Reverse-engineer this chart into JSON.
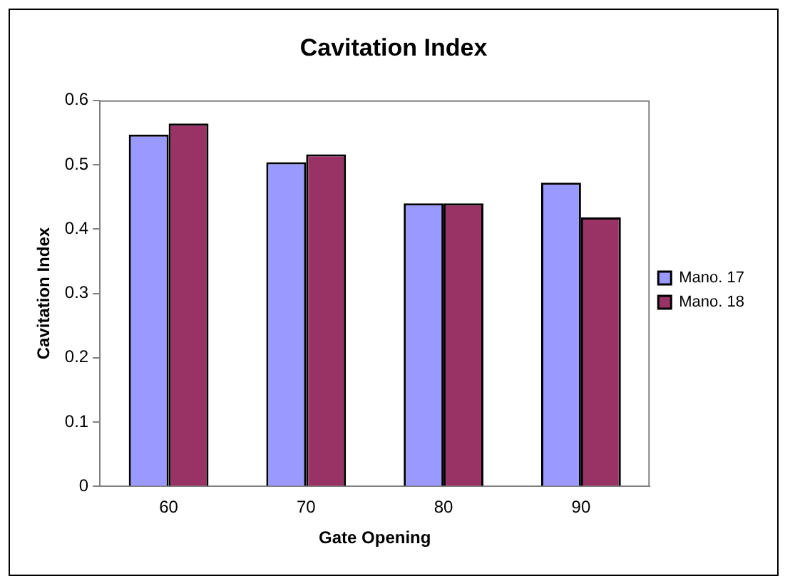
{
  "chart_data": {
    "type": "bar",
    "title": "Cavitation Index",
    "xlabel": "Gate Opening",
    "ylabel": "Cavitation Index",
    "categories": [
      "60",
      "70",
      "80",
      "90"
    ],
    "series": [
      {
        "name": "Mano. 17",
        "color": "#9999ff",
        "values": [
          0.547,
          0.504,
          0.44,
          0.472
        ]
      },
      {
        "name": "Mano. 18",
        "color": "#993366",
        "values": [
          0.564,
          0.516,
          0.44,
          0.418
        ]
      }
    ],
    "ylim": [
      0,
      0.6
    ],
    "yticks": [
      0,
      0.1,
      0.2,
      0.3,
      0.4,
      0.5,
      0.6
    ],
    "grid": false,
    "legend": "right"
  }
}
